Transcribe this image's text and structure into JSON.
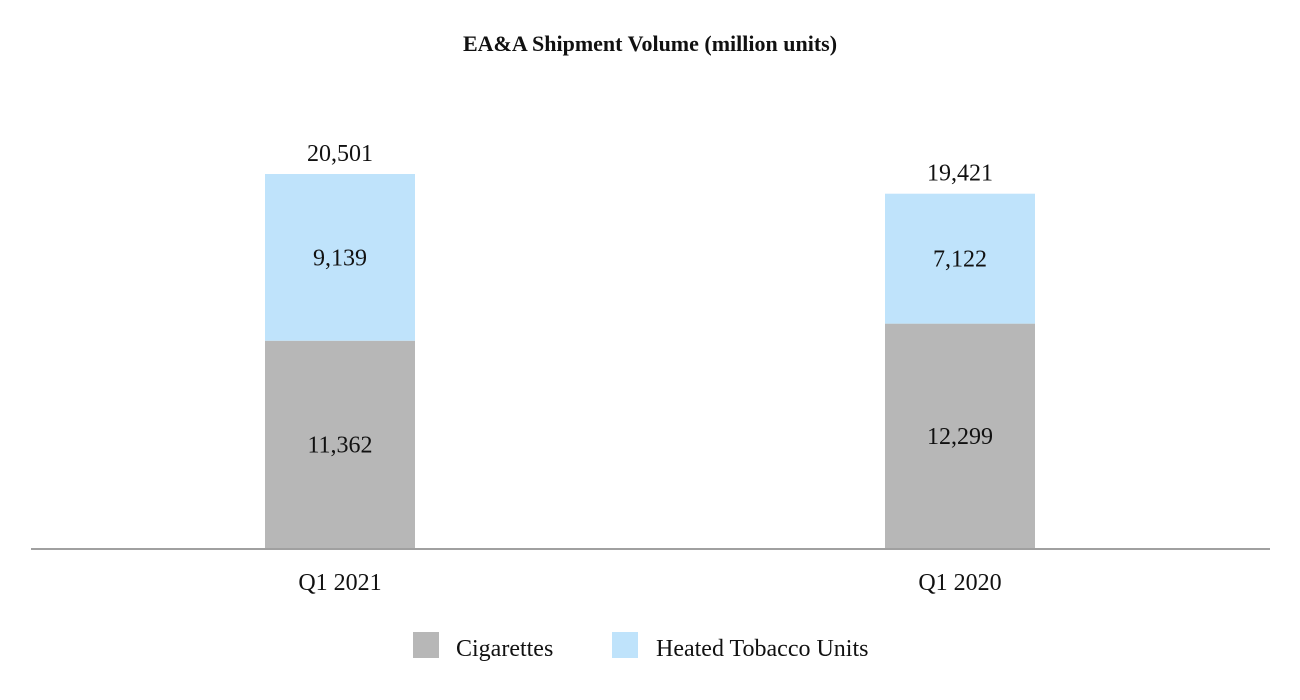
{
  "chart_data": {
    "type": "bar",
    "stacked": true,
    "title": "EA&A Shipment Volume (million units)",
    "xlabel": "",
    "ylabel": "",
    "categories": [
      "Q1 2021",
      "Q1 2020"
    ],
    "series": [
      {
        "name": "Cigarettes",
        "values": [
          11362,
          12299
        ],
        "value_labels": [
          "11,362",
          "12,299"
        ],
        "color": "#b7b7b7"
      },
      {
        "name": "Heated Tobacco Units",
        "values": [
          9139,
          7122
        ],
        "value_labels": [
          "9,139",
          "7,122"
        ],
        "color": "#bfe3fb"
      }
    ],
    "totals": [
      20501,
      19421
    ],
    "total_labels": [
      "20,501",
      "19,421"
    ],
    "ylim": [
      0,
      20501
    ],
    "grid": false,
    "legend": "bottom-center",
    "axis_color": "#a0a0a0"
  }
}
